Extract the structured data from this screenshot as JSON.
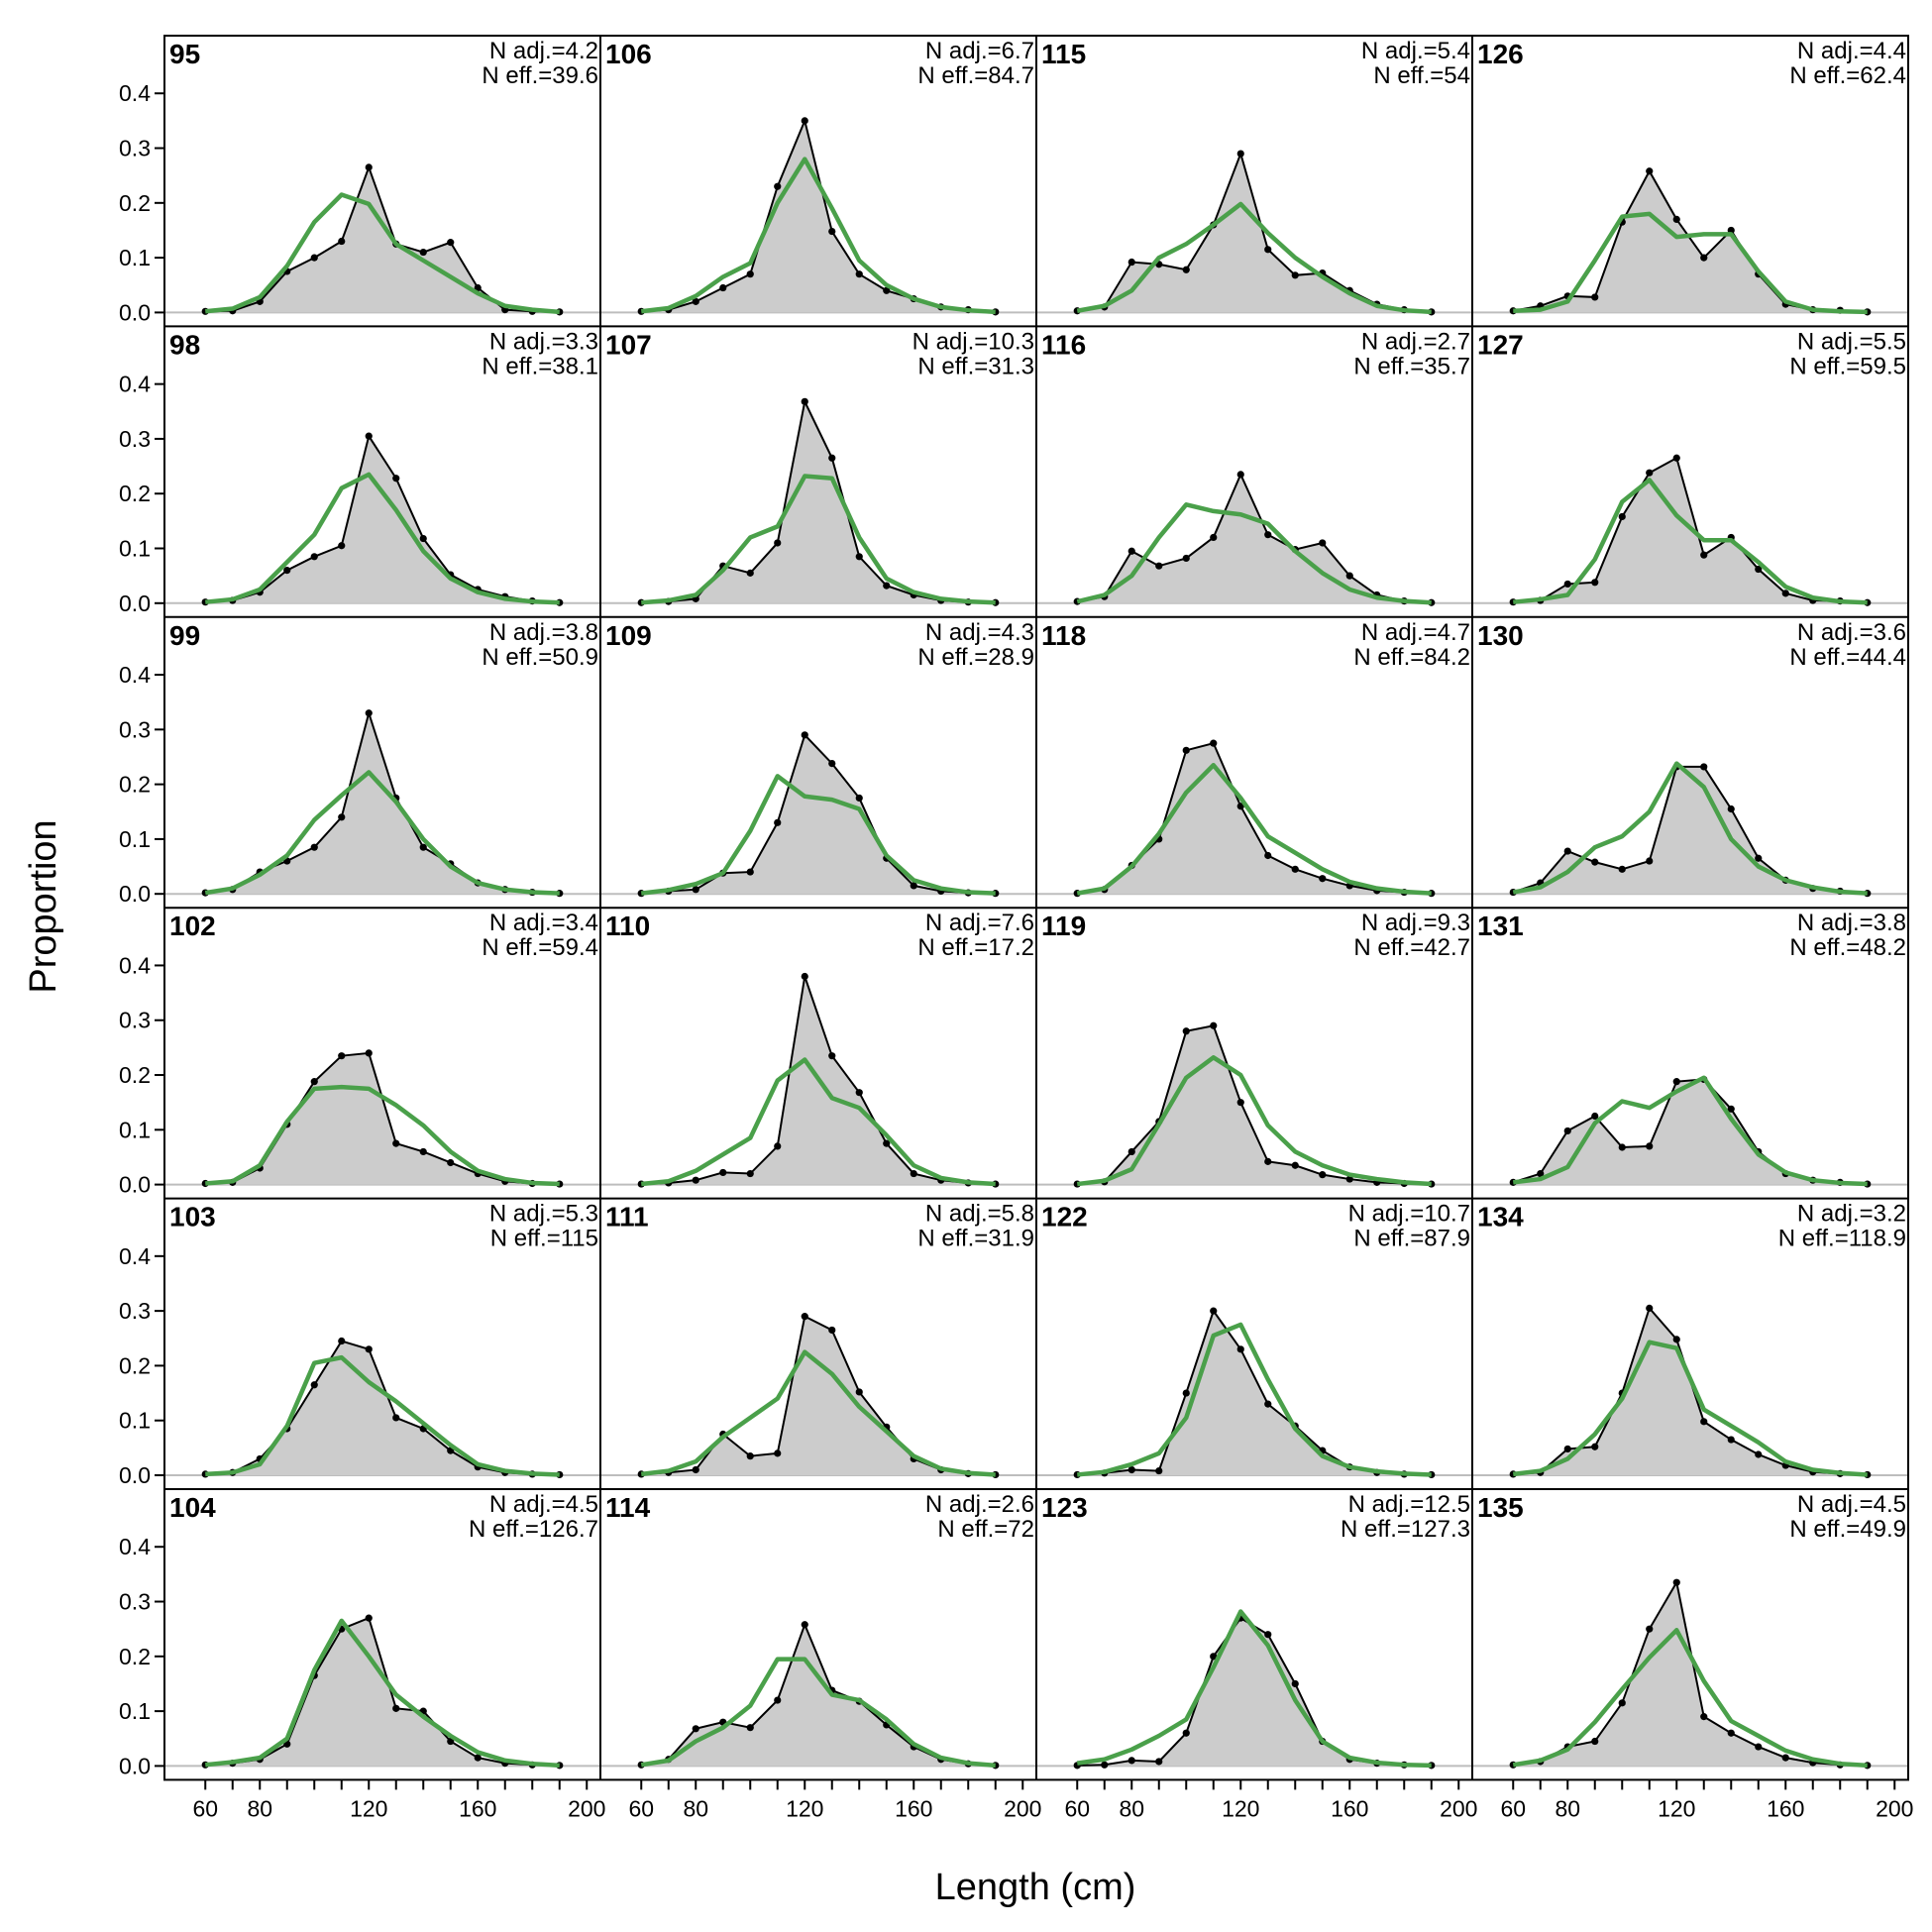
{
  "xlabel": "Length (cm)",
  "ylabel": "Proportion",
  "x_tick_labels": [
    "60",
    "80",
    "120",
    "160",
    "200"
  ],
  "y_tick_labels": [
    "0.0",
    "0.1",
    "0.2",
    "0.3",
    "0.4"
  ],
  "colors": {
    "observed_fill": "#cccccc",
    "observed_line": "#000000",
    "expected_line": "#4aa04a",
    "zero_line": "#bdbdbd"
  },
  "chart_data": {
    "type": "line",
    "layout": "multi-panel grid, 6 rows x 4 columns",
    "xlim": [
      45,
      205
    ],
    "ylim": [
      0,
      0.48
    ],
    "x_ticks": [
      60,
      80,
      120,
      160,
      200
    ],
    "y_ticks": [
      0,
      0.1,
      0.2,
      0.3,
      0.4
    ],
    "x": [
      60,
      70,
      80,
      90,
      100,
      110,
      120,
      130,
      140,
      150,
      160,
      170,
      180,
      190
    ],
    "series_styles": {
      "observed": "black line with dots over grey shaded area",
      "expected": "green line"
    },
    "panels": [
      {
        "label": "95",
        "n_adj": "N adj.=4.2",
        "n_eff": "N eff.=39.6",
        "observed": [
          0.002,
          0.003,
          0.02,
          0.075,
          0.1,
          0.13,
          0.265,
          0.125,
          0.11,
          0.128,
          0.045,
          0.005,
          0.002,
          0.001
        ],
        "expected": [
          0.002,
          0.007,
          0.028,
          0.085,
          0.165,
          0.215,
          0.198,
          0.125,
          0.095,
          0.065,
          0.035,
          0.012,
          0.005,
          0.001
        ]
      },
      {
        "label": "106",
        "n_adj": "N adj.=6.7",
        "n_eff": "N eff.=84.7",
        "observed": [
          0.002,
          0.005,
          0.02,
          0.045,
          0.07,
          0.23,
          0.35,
          0.148,
          0.07,
          0.04,
          0.025,
          0.01,
          0.005,
          0.001
        ],
        "expected": [
          0.002,
          0.008,
          0.03,
          0.065,
          0.09,
          0.2,
          0.28,
          0.19,
          0.095,
          0.05,
          0.025,
          0.01,
          0.004,
          0.001
        ]
      },
      {
        "label": "115",
        "n_adj": "N adj.=5.4",
        "n_eff": "N eff.=54",
        "observed": [
          0.003,
          0.01,
          0.092,
          0.088,
          0.078,
          0.16,
          0.29,
          0.115,
          0.068,
          0.072,
          0.04,
          0.015,
          0.005,
          0.001
        ],
        "expected": [
          0.003,
          0.012,
          0.04,
          0.1,
          0.125,
          0.16,
          0.198,
          0.145,
          0.1,
          0.065,
          0.035,
          0.012,
          0.004,
          0.001
        ]
      },
      {
        "label": "126",
        "n_adj": "N adj.=4.4",
        "n_eff": "N eff.=62.4",
        "observed": [
          0.003,
          0.012,
          0.03,
          0.028,
          0.165,
          0.258,
          0.17,
          0.1,
          0.15,
          0.07,
          0.015,
          0.005,
          0.004,
          0.001
        ],
        "expected": [
          0.003,
          0.005,
          0.02,
          0.095,
          0.175,
          0.18,
          0.138,
          0.143,
          0.143,
          0.075,
          0.02,
          0.005,
          0.002,
          0.001
        ]
      },
      {
        "label": "98",
        "n_adj": "N adj.=3.3",
        "n_eff": "N eff.=38.1",
        "observed": [
          0.002,
          0.005,
          0.02,
          0.06,
          0.085,
          0.105,
          0.305,
          0.228,
          0.118,
          0.052,
          0.025,
          0.012,
          0.004,
          0.001
        ],
        "expected": [
          0.002,
          0.007,
          0.025,
          0.075,
          0.125,
          0.21,
          0.235,
          0.17,
          0.095,
          0.045,
          0.02,
          0.008,
          0.003,
          0.001
        ]
      },
      {
        "label": "107",
        "n_adj": "N adj.=10.3",
        "n_eff": "N eff.=31.3",
        "observed": [
          0.001,
          0.003,
          0.008,
          0.068,
          0.055,
          0.11,
          0.368,
          0.265,
          0.085,
          0.032,
          0.015,
          0.005,
          0.002,
          0.001
        ],
        "expected": [
          0.001,
          0.005,
          0.015,
          0.06,
          0.12,
          0.14,
          0.232,
          0.228,
          0.12,
          0.045,
          0.02,
          0.008,
          0.003,
          0.001
        ]
      },
      {
        "label": "116",
        "n_adj": "N adj.=2.7",
        "n_eff": "N eff.=35.7",
        "observed": [
          0.003,
          0.012,
          0.095,
          0.068,
          0.082,
          0.12,
          0.235,
          0.125,
          0.098,
          0.11,
          0.05,
          0.015,
          0.004,
          0.001
        ],
        "expected": [
          0.003,
          0.015,
          0.05,
          0.12,
          0.18,
          0.168,
          0.162,
          0.145,
          0.095,
          0.055,
          0.025,
          0.01,
          0.004,
          0.001
        ]
      },
      {
        "label": "127",
        "n_adj": "N adj.=5.5",
        "n_eff": "N eff.=59.5",
        "observed": [
          0.002,
          0.005,
          0.035,
          0.038,
          0.158,
          0.238,
          0.265,
          0.088,
          0.12,
          0.062,
          0.018,
          0.005,
          0.004,
          0.001
        ],
        "expected": [
          0.002,
          0.007,
          0.015,
          0.08,
          0.185,
          0.225,
          0.16,
          0.115,
          0.115,
          0.075,
          0.03,
          0.01,
          0.003,
          0.001
        ]
      },
      {
        "label": "99",
        "n_adj": "N adj.=3.8",
        "n_eff": "N eff.=50.9",
        "observed": [
          0.002,
          0.008,
          0.04,
          0.06,
          0.085,
          0.14,
          0.33,
          0.175,
          0.085,
          0.055,
          0.02,
          0.008,
          0.003,
          0.001
        ],
        "expected": [
          0.002,
          0.01,
          0.035,
          0.07,
          0.135,
          0.18,
          0.222,
          0.168,
          0.1,
          0.05,
          0.02,
          0.008,
          0.003,
          0.001
        ]
      },
      {
        "label": "109",
        "n_adj": "N adj.=4.3",
        "n_eff": "N eff.=28.9",
        "observed": [
          0.001,
          0.005,
          0.008,
          0.038,
          0.04,
          0.13,
          0.29,
          0.238,
          0.175,
          0.065,
          0.015,
          0.005,
          0.002,
          0.001
        ],
        "expected": [
          0.001,
          0.007,
          0.018,
          0.038,
          0.115,
          0.215,
          0.178,
          0.172,
          0.155,
          0.07,
          0.025,
          0.01,
          0.003,
          0.001
        ]
      },
      {
        "label": "118",
        "n_adj": "N adj.=4.7",
        "n_eff": "N eff.=84.2",
        "observed": [
          0.001,
          0.008,
          0.052,
          0.1,
          0.262,
          0.275,
          0.16,
          0.07,
          0.045,
          0.028,
          0.015,
          0.006,
          0.003,
          0.001
        ],
        "expected": [
          0.001,
          0.01,
          0.05,
          0.11,
          0.185,
          0.235,
          0.175,
          0.105,
          0.075,
          0.045,
          0.022,
          0.01,
          0.004,
          0.001
        ]
      },
      {
        "label": "130",
        "n_adj": "N adj.=3.6",
        "n_eff": "N eff.=44.4",
        "observed": [
          0.003,
          0.02,
          0.078,
          0.058,
          0.045,
          0.06,
          0.232,
          0.232,
          0.155,
          0.065,
          0.025,
          0.01,
          0.005,
          0.001
        ],
        "expected": [
          0.003,
          0.012,
          0.04,
          0.085,
          0.105,
          0.15,
          0.238,
          0.195,
          0.1,
          0.05,
          0.025,
          0.012,
          0.004,
          0.001
        ]
      },
      {
        "label": "102",
        "n_adj": "N adj.=3.4",
        "n_eff": "N eff.=59.4",
        "observed": [
          0.002,
          0.004,
          0.03,
          0.11,
          0.188,
          0.235,
          0.24,
          0.075,
          0.06,
          0.04,
          0.02,
          0.006,
          0.002,
          0.001
        ],
        "expected": [
          0.002,
          0.006,
          0.035,
          0.115,
          0.175,
          0.178,
          0.175,
          0.145,
          0.108,
          0.06,
          0.025,
          0.01,
          0.003,
          0.001
        ]
      },
      {
        "label": "110",
        "n_adj": "N adj.=7.6",
        "n_eff": "N eff.=17.2",
        "observed": [
          0.001,
          0.003,
          0.008,
          0.022,
          0.02,
          0.07,
          0.38,
          0.235,
          0.168,
          0.075,
          0.02,
          0.008,
          0.003,
          0.001
        ],
        "expected": [
          0.001,
          0.006,
          0.025,
          0.055,
          0.085,
          0.19,
          0.228,
          0.158,
          0.14,
          0.09,
          0.035,
          0.012,
          0.004,
          0.001
        ]
      },
      {
        "label": "119",
        "n_adj": "N adj.=9.3",
        "n_eff": "N eff.=42.7",
        "observed": [
          0.001,
          0.005,
          0.06,
          0.115,
          0.28,
          0.29,
          0.15,
          0.042,
          0.035,
          0.018,
          0.01,
          0.004,
          0.002,
          0.001
        ],
        "expected": [
          0.001,
          0.007,
          0.028,
          0.11,
          0.195,
          0.232,
          0.2,
          0.108,
          0.06,
          0.035,
          0.018,
          0.01,
          0.004,
          0.001
        ]
      },
      {
        "label": "131",
        "n_adj": "N adj.=3.8",
        "n_eff": "N eff.=48.2",
        "observed": [
          0.004,
          0.02,
          0.098,
          0.125,
          0.068,
          0.07,
          0.188,
          0.192,
          0.138,
          0.06,
          0.02,
          0.008,
          0.004,
          0.001
        ],
        "expected": [
          0.004,
          0.01,
          0.032,
          0.112,
          0.152,
          0.14,
          0.17,
          0.195,
          0.12,
          0.055,
          0.022,
          0.008,
          0.003,
          0.001
        ]
      },
      {
        "label": "103",
        "n_adj": "N adj.=5.3",
        "n_eff": "N eff.=115",
        "observed": [
          0.002,
          0.005,
          0.03,
          0.085,
          0.165,
          0.245,
          0.23,
          0.105,
          0.085,
          0.045,
          0.015,
          0.005,
          0.002,
          0.001
        ],
        "expected": [
          0.002,
          0.005,
          0.02,
          0.09,
          0.205,
          0.215,
          0.17,
          0.135,
          0.095,
          0.055,
          0.02,
          0.008,
          0.003,
          0.001
        ]
      },
      {
        "label": "111",
        "n_adj": "N adj.=5.8",
        "n_eff": "N eff.=31.9",
        "observed": [
          0.002,
          0.005,
          0.01,
          0.075,
          0.035,
          0.04,
          0.29,
          0.265,
          0.152,
          0.088,
          0.03,
          0.01,
          0.003,
          0.001
        ],
        "expected": [
          0.002,
          0.008,
          0.025,
          0.07,
          0.105,
          0.14,
          0.225,
          0.185,
          0.125,
          0.08,
          0.035,
          0.012,
          0.004,
          0.001
        ]
      },
      {
        "label": "122",
        "n_adj": "N adj.=10.7",
        "n_eff": "N eff.=87.9",
        "observed": [
          0.001,
          0.004,
          0.01,
          0.008,
          0.15,
          0.3,
          0.23,
          0.13,
          0.09,
          0.045,
          0.015,
          0.005,
          0.002,
          0.001
        ],
        "expected": [
          0.001,
          0.006,
          0.02,
          0.04,
          0.105,
          0.255,
          0.275,
          0.175,
          0.085,
          0.035,
          0.015,
          0.007,
          0.003,
          0.001
        ]
      },
      {
        "label": "134",
        "n_adj": "N adj.=3.2",
        "n_eff": "N eff.=118.9",
        "observed": [
          0.002,
          0.005,
          0.048,
          0.052,
          0.15,
          0.305,
          0.248,
          0.098,
          0.065,
          0.038,
          0.018,
          0.006,
          0.003,
          0.001
        ],
        "expected": [
          0.002,
          0.008,
          0.03,
          0.075,
          0.14,
          0.243,
          0.232,
          0.12,
          0.09,
          0.06,
          0.025,
          0.01,
          0.004,
          0.001
        ]
      },
      {
        "label": "104",
        "n_adj": "N adj.=4.5",
        "n_eff": "N eff.=126.7",
        "observed": [
          0.002,
          0.005,
          0.012,
          0.04,
          0.165,
          0.25,
          0.27,
          0.105,
          0.1,
          0.045,
          0.015,
          0.005,
          0.002,
          0.001
        ],
        "expected": [
          0.002,
          0.007,
          0.015,
          0.05,
          0.175,
          0.265,
          0.2,
          0.13,
          0.09,
          0.055,
          0.025,
          0.01,
          0.004,
          0.001
        ]
      },
      {
        "label": "114",
        "n_adj": "N adj.=2.6",
        "n_eff": "N eff.=72",
        "observed": [
          0.002,
          0.012,
          0.068,
          0.08,
          0.07,
          0.12,
          0.258,
          0.138,
          0.118,
          0.075,
          0.035,
          0.012,
          0.004,
          0.001
        ],
        "expected": [
          0.002,
          0.01,
          0.045,
          0.07,
          0.11,
          0.195,
          0.195,
          0.13,
          0.12,
          0.085,
          0.04,
          0.015,
          0.005,
          0.001
        ]
      },
      {
        "label": "123",
        "n_adj": "N adj.=12.5",
        "n_eff": "N eff.=127.3",
        "observed": [
          0.001,
          0.002,
          0.01,
          0.008,
          0.06,
          0.2,
          0.27,
          0.24,
          0.15,
          0.045,
          0.012,
          0.005,
          0.002,
          0.001
        ],
        "expected": [
          0.005,
          0.012,
          0.03,
          0.055,
          0.085,
          0.18,
          0.282,
          0.22,
          0.12,
          0.045,
          0.015,
          0.006,
          0.002,
          0.001
        ]
      },
      {
        "label": "135",
        "n_adj": "N adj.=4.5",
        "n_eff": "N eff.=49.9",
        "observed": [
          0.002,
          0.008,
          0.035,
          0.045,
          0.115,
          0.25,
          0.335,
          0.09,
          0.06,
          0.035,
          0.015,
          0.006,
          0.002,
          0.001
        ],
        "expected": [
          0.002,
          0.01,
          0.03,
          0.08,
          0.14,
          0.198,
          0.248,
          0.155,
          0.082,
          0.055,
          0.028,
          0.012,
          0.004,
          0.001
        ]
      }
    ]
  }
}
